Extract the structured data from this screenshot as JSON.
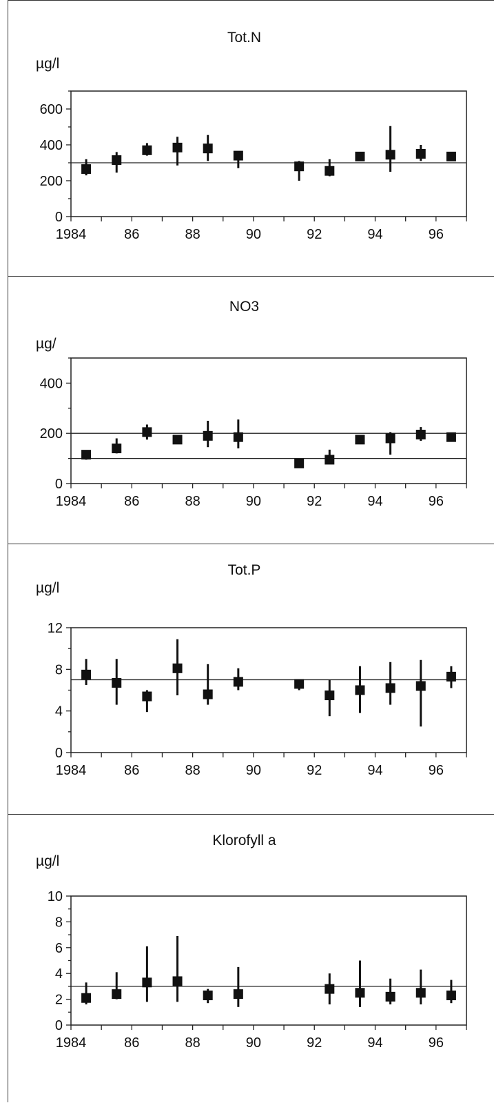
{
  "chart_data": [
    {
      "type": "scatter",
      "title": "Tot.N",
      "ylabel": "µg/l",
      "xlabel": "",
      "ylim": [
        0,
        700
      ],
      "yticks": [
        0,
        200,
        400,
        600
      ],
      "xlim": [
        1983.5,
        1996.5
      ],
      "xticks": [
        1984,
        1986,
        1988,
        1990,
        1992,
        1994,
        1996
      ],
      "xticklabels": [
        "1984",
        "86",
        "88",
        "90",
        "92",
        "94",
        "96"
      ],
      "reference_lines": [
        300
      ],
      "points": [
        {
          "x": 1984,
          "y": 265,
          "low": 230,
          "high": 320
        },
        {
          "x": 1985,
          "y": 315,
          "low": 245,
          "high": 360
        },
        {
          "x": 1986,
          "y": 370,
          "low": 340,
          "high": 410
        },
        {
          "x": 1987,
          "y": 385,
          "low": 285,
          "high": 445
        },
        {
          "x": 1988,
          "y": 380,
          "low": 310,
          "high": 455
        },
        {
          "x": 1989,
          "y": 340,
          "low": 270,
          "high": 360
        },
        {
          "x": 1991,
          "y": 280,
          "low": 200,
          "high": 310
        },
        {
          "x": 1992,
          "y": 255,
          "low": 225,
          "high": 320
        },
        {
          "x": 1993,
          "y": 335,
          "low": 320,
          "high": 350
        },
        {
          "x": 1994,
          "y": 345,
          "low": 250,
          "high": 505
        },
        {
          "x": 1995,
          "y": 350,
          "low": 310,
          "high": 400
        },
        {
          "x": 1996,
          "y": 335,
          "low": 320,
          "high": 350
        }
      ]
    },
    {
      "type": "scatter",
      "title": "NO3",
      "ylabel": "µg/",
      "xlabel": "",
      "ylim": [
        0,
        500
      ],
      "yticks": [
        0,
        200,
        400
      ],
      "xlim": [
        1983.5,
        1996.5
      ],
      "xticks": [
        1984,
        1986,
        1988,
        1990,
        1992,
        1994,
        1996
      ],
      "xticklabels": [
        "1984",
        "86",
        "88",
        "90",
        "92",
        "94",
        "96"
      ],
      "reference_lines": [
        100,
        200
      ],
      "points": [
        {
          "x": 1984,
          "y": 115,
          "low": 95,
          "high": 130
        },
        {
          "x": 1985,
          "y": 140,
          "low": 120,
          "high": 180
        },
        {
          "x": 1986,
          "y": 205,
          "low": 175,
          "high": 235
        },
        {
          "x": 1987,
          "y": 175,
          "low": 160,
          "high": 185
        },
        {
          "x": 1988,
          "y": 190,
          "low": 145,
          "high": 250
        },
        {
          "x": 1989,
          "y": 185,
          "low": 140,
          "high": 255
        },
        {
          "x": 1991,
          "y": 80,
          "low": 70,
          "high": 95
        },
        {
          "x": 1992,
          "y": 95,
          "low": 80,
          "high": 135
        },
        {
          "x": 1993,
          "y": 175,
          "low": 160,
          "high": 190
        },
        {
          "x": 1994,
          "y": 180,
          "low": 115,
          "high": 205
        },
        {
          "x": 1995,
          "y": 195,
          "low": 170,
          "high": 225
        },
        {
          "x": 1996,
          "y": 185,
          "low": 175,
          "high": 200
        }
      ]
    },
    {
      "type": "scatter",
      "title": "Tot.P",
      "ylabel": "µg/l",
      "xlabel": "",
      "ylim": [
        0,
        12
      ],
      "yticks": [
        0,
        4,
        8,
        12
      ],
      "xlim": [
        1983.5,
        1996.5
      ],
      "xticks": [
        1984,
        1986,
        1988,
        1990,
        1992,
        1994,
        1996
      ],
      "xticklabels": [
        "1984",
        "86",
        "88",
        "90",
        "92",
        "94",
        "96"
      ],
      "reference_lines": [
        7
      ],
      "points": [
        {
          "x": 1984,
          "y": 7.5,
          "low": 6.5,
          "high": 9.0
        },
        {
          "x": 1985,
          "y": 6.7,
          "low": 4.6,
          "high": 9.0
        },
        {
          "x": 1986,
          "y": 5.4,
          "low": 3.9,
          "high": 6.0
        },
        {
          "x": 1987,
          "y": 8.1,
          "low": 5.5,
          "high": 10.9
        },
        {
          "x": 1988,
          "y": 5.6,
          "low": 4.6,
          "high": 8.5
        },
        {
          "x": 1989,
          "y": 6.8,
          "low": 6.0,
          "high": 8.1
        },
        {
          "x": 1991,
          "y": 6.6,
          "low": 6.0,
          "high": 7.0
        },
        {
          "x": 1992,
          "y": 5.5,
          "low": 3.5,
          "high": 7.0
        },
        {
          "x": 1993,
          "y": 6.0,
          "low": 3.8,
          "high": 8.3
        },
        {
          "x": 1994,
          "y": 6.2,
          "low": 4.6,
          "high": 8.7
        },
        {
          "x": 1995,
          "y": 6.4,
          "low": 2.5,
          "high": 8.9
        },
        {
          "x": 1996,
          "y": 7.3,
          "low": 6.2,
          "high": 8.3
        }
      ]
    },
    {
      "type": "scatter",
      "title": "Klorofyll a",
      "ylabel": "µg/l",
      "xlabel": "",
      "ylim": [
        0,
        10
      ],
      "yticks": [
        0,
        2,
        4,
        6,
        8,
        10
      ],
      "xlim": [
        1983.5,
        1996.5
      ],
      "xticks": [
        1984,
        1986,
        1988,
        1990,
        1992,
        1994,
        1996
      ],
      "xticklabels": [
        "1984",
        "86",
        "88",
        "90",
        "92",
        "94",
        "96"
      ],
      "reference_lines": [
        3
      ],
      "points": [
        {
          "x": 1984,
          "y": 2.1,
          "low": 1.6,
          "high": 3.3
        },
        {
          "x": 1985,
          "y": 2.4,
          "low": 2.0,
          "high": 4.1
        },
        {
          "x": 1986,
          "y": 3.3,
          "low": 1.8,
          "high": 6.1
        },
        {
          "x": 1987,
          "y": 3.4,
          "low": 1.8,
          "high": 6.9
        },
        {
          "x": 1988,
          "y": 2.3,
          "low": 1.7,
          "high": 2.8
        },
        {
          "x": 1989,
          "y": 2.4,
          "low": 1.4,
          "high": 4.5
        },
        {
          "x": 1992,
          "y": 2.8,
          "low": 1.6,
          "high": 4.0
        },
        {
          "x": 1993,
          "y": 2.5,
          "low": 1.4,
          "high": 5.0
        },
        {
          "x": 1994,
          "y": 2.2,
          "low": 1.6,
          "high": 3.6
        },
        {
          "x": 1995,
          "y": 2.5,
          "low": 1.6,
          "high": 4.3
        },
        {
          "x": 1996,
          "y": 2.3,
          "low": 1.7,
          "high": 3.5
        }
      ]
    }
  ]
}
